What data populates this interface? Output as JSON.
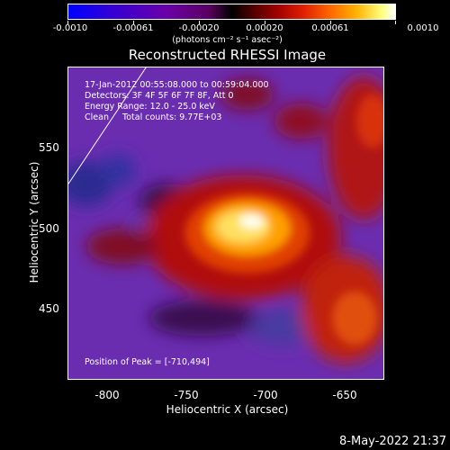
{
  "colorbar": {
    "labels": [
      "-0.0010",
      "-0.00061",
      "-0.00020",
      "0.00020",
      "0.00061",
      "0.0010"
    ],
    "units": "(photons cm⁻² s⁻¹ asec⁻²)"
  },
  "title": "Reconstructed RHESSI Image",
  "info": {
    "line1": "17-Jan-2012 00:55:08.000 to 00:59:04.000",
    "line2": "Detectors: 3F 4F 5F 6F 7F 8F, Att 0",
    "line3": "Energy Range: 12.0 - 25.0 keV",
    "line4": "Clean     Total counts: 9.77E+03",
    "peak": "Position of Peak = [-710,494]"
  },
  "axes": {
    "xlabel": "Heliocentric X (arcsec)",
    "ylabel": "Heliocentric Y (arcsec)",
    "xticks": [
      "-800",
      "-750",
      "-700",
      "-650"
    ],
    "yticks": [
      "550",
      "500",
      "450"
    ]
  },
  "timestamp": "8-May-2022 21:37"
}
